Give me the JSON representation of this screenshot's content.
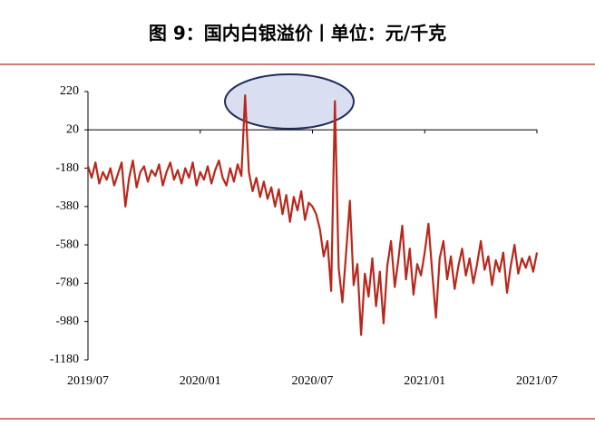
{
  "chart_data": {
    "type": "line",
    "title": "图 9：国内白银溢价丨单位：元/千克",
    "categories": [
      "2019/07",
      null,
      null,
      null,
      null,
      null,
      null,
      null,
      null,
      null,
      null,
      null,
      null,
      null,
      null,
      null,
      null,
      null,
      null,
      null,
      null,
      null,
      null,
      null,
      null,
      null,
      null,
      null,
      null,
      null,
      "2020/01",
      null,
      null,
      null,
      null,
      null,
      null,
      null,
      null,
      null,
      null,
      null,
      null,
      null,
      null,
      null,
      null,
      null,
      null,
      null,
      null,
      null,
      null,
      null,
      null,
      null,
      null,
      null,
      null,
      null,
      "2020/07",
      null,
      null,
      null,
      null,
      null,
      null,
      null,
      null,
      null,
      null,
      null,
      null,
      null,
      null,
      null,
      null,
      null,
      null,
      null,
      null,
      null,
      null,
      null,
      null,
      null,
      null,
      null,
      null,
      null,
      "2021/01",
      null,
      null,
      null,
      null,
      null,
      null,
      null,
      null,
      null,
      null,
      null,
      null,
      null,
      null,
      null,
      null,
      null,
      null,
      null,
      null,
      null,
      null,
      null,
      null,
      null,
      null,
      null,
      null,
      null,
      "2021/07"
    ],
    "series": [
      {
        "name": "国内白银溢价",
        "color": "#b8281c",
        "values": [
          -170,
          -230,
          -150,
          -260,
          -200,
          -240,
          -180,
          -270,
          -210,
          -150,
          -380,
          -230,
          -140,
          -280,
          -200,
          -170,
          -250,
          -190,
          -220,
          -160,
          -270,
          -200,
          -150,
          -240,
          -190,
          -260,
          -180,
          -230,
          -150,
          -270,
          -200,
          -240,
          -170,
          -260,
          -190,
          -140,
          -230,
          -270,
          -180,
          -250,
          -160,
          -220,
          200,
          -200,
          -300,
          -230,
          -330,
          -250,
          -340,
          -280,
          -380,
          -290,
          -420,
          -320,
          -460,
          -330,
          -400,
          -300,
          -450,
          -360,
          -380,
          -420,
          -500,
          -640,
          -560,
          -820,
          170,
          -700,
          -880,
          -620,
          -350,
          -790,
          -680,
          -1050,
          -730,
          -850,
          -650,
          -900,
          -720,
          -990,
          -690,
          -560,
          -800,
          -650,
          -480,
          -760,
          -600,
          -840,
          -680,
          -740,
          -620,
          -470,
          -720,
          -960,
          -650,
          -560,
          -760,
          -640,
          -810,
          -690,
          -600,
          -740,
          -650,
          -780,
          -680,
          -560,
          -710,
          -640,
          -790,
          -660,
          -720,
          -620,
          -830,
          -690,
          -580,
          -730,
          -650,
          -700,
          -640,
          -720,
          -620
        ]
      }
    ],
    "ylim": [
      -1180,
      220
    ],
    "yticks": [
      220,
      20,
      -180,
      -380,
      -580,
      -780,
      -980,
      -1180
    ],
    "xaxis_crosses": 20
  }
}
